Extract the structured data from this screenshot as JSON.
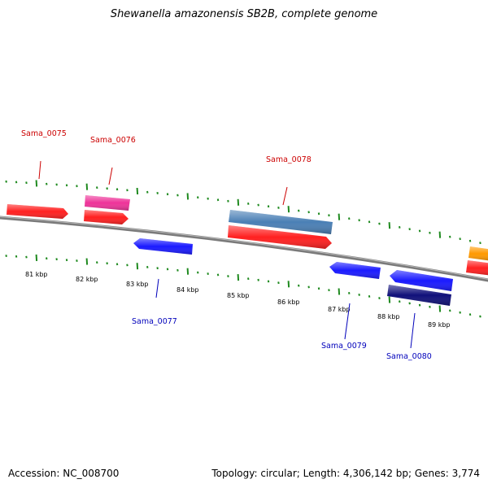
{
  "title": "Shewanella amazonensis SB2B, complete genome",
  "footer": {
    "accession": "Accession: NC_008700",
    "stats": "Topology: circular; Length: 4,306,142 bp; Genes: 3,774"
  },
  "colors": {
    "backbone": "#8a8a8a",
    "tick": "#1f8a1f",
    "forward_label": "#cc0000",
    "reverse_label": "#0000bb"
  },
  "ticks": [
    {
      "label": "81 kbp"
    },
    {
      "label": "82 kbp"
    },
    {
      "label": "83 kbp"
    },
    {
      "label": "84 kbp"
    },
    {
      "label": "85 kbp"
    },
    {
      "label": "86 kbp"
    },
    {
      "label": "87 kbp"
    },
    {
      "label": "88 kbp"
    },
    {
      "label": "89 kbp"
    }
  ],
  "labels": {
    "sama_0075": "Sama_0075",
    "sama_0076": "Sama_0076",
    "sama_0077": "Sama_0077",
    "sama_0078": "Sama_0078",
    "sama_0079": "Sama_0079",
    "sama_0080": "Sama_0080"
  },
  "features": [
    {
      "id": "f1",
      "color": "#ff2020"
    },
    {
      "id": "f2",
      "color": "#ee3399"
    },
    {
      "id": "f3",
      "color": "#ff2020"
    },
    {
      "id": "f4",
      "color": "#1a1aff"
    },
    {
      "id": "f5",
      "color": "#4a7fb5"
    },
    {
      "id": "f6",
      "color": "#ff2020"
    },
    {
      "id": "f7",
      "color": "#1a1aff"
    },
    {
      "id": "f8",
      "color": "#1a1aff"
    },
    {
      "id": "f9",
      "color": "#10107a"
    },
    {
      "id": "f10",
      "color": "#ff9900"
    },
    {
      "id": "f11",
      "color": "#ff2020"
    }
  ]
}
